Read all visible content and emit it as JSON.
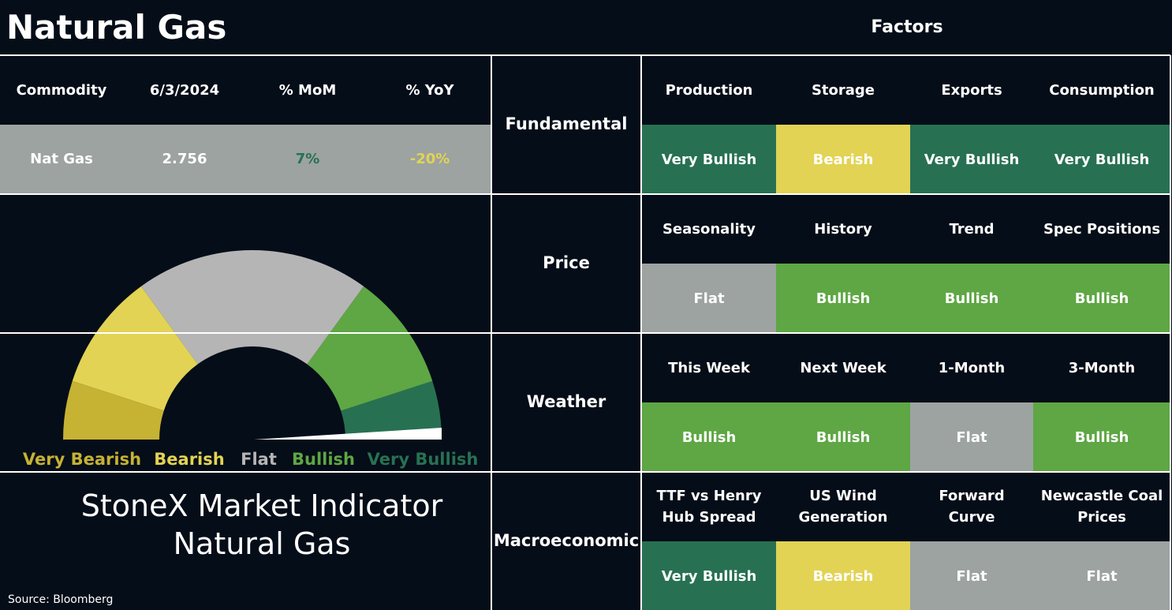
{
  "header": {
    "title": "Natural Gas",
    "factors_title": "Factors"
  },
  "table": {
    "columns": [
      "Commodity",
      "6/3/2024",
      "% MoM",
      "% YoY"
    ],
    "rows": [
      [
        "Nat Gas",
        "2.756",
        "7%",
        "-20%"
      ]
    ],
    "row_color": "#9ca3a1",
    "cell_colors": [
      [
        "#ffffff",
        "#ffffff",
        "#277152",
        "#e2d354"
      ]
    ]
  },
  "gauge": {
    "segments": [
      {
        "label": "Very Bearish",
        "color": "#c6b233",
        "label_color": "#c6b233"
      },
      {
        "label": "Bearish",
        "color": "#e2d354",
        "label_color": "#e2d354"
      },
      {
        "label": "Flat",
        "color": "#b5b5b5",
        "label_color": "#b5b5b5"
      },
      {
        "label": "Bullish",
        "color": "#5ea744",
        "label_color": "#5ea744"
      },
      {
        "label": "Very Bullish",
        "color": "#277152",
        "label_color": "#277152"
      }
    ],
    "title": [
      "StoneX Market Indicator",
      "Natural Gas"
    ]
  },
  "source": "Source: Bloomberg",
  "factors": [
    {
      "group": "Fundamental",
      "items": [
        {
          "name": "Production",
          "signal": "Very Bullish",
          "color": "#277152"
        },
        {
          "name": "Storage",
          "signal": "Bearish",
          "color": "#e2d354"
        },
        {
          "name": "Exports",
          "signal": "Very Bullish",
          "color": "#277152"
        },
        {
          "name": "Consumption",
          "signal": "Very Bullish",
          "color": "#277152"
        }
      ]
    },
    {
      "group": "Price",
      "items": [
        {
          "name": "Seasonality",
          "signal": "Flat",
          "color": "#9ca3a1"
        },
        {
          "name": "History",
          "signal": "Bullish",
          "color": "#5ea744"
        },
        {
          "name": "Trend",
          "signal": "Bullish",
          "color": "#5ea744"
        },
        {
          "name": "Spec Positions",
          "signal": "Bullish",
          "color": "#5ea744"
        }
      ]
    },
    {
      "group": "Weather",
      "items": [
        {
          "name": "This Week",
          "signal": "Bullish",
          "color": "#5ea744"
        },
        {
          "name": "Next Week",
          "signal": "Bullish",
          "color": "#5ea744"
        },
        {
          "name": "1-Month",
          "signal": "Flat",
          "color": "#9ca3a1"
        },
        {
          "name": "3-Month",
          "signal": "Bullish",
          "color": "#5ea744"
        }
      ]
    },
    {
      "group": "Macroeconomic",
      "items": [
        {
          "name": "TTF vs Henry\nHub Spread",
          "signal": "Very Bullish",
          "color": "#277152"
        },
        {
          "name": "US Wind\nGeneration",
          "signal": "Bearish",
          "color": "#e2d354"
        },
        {
          "name": "Forward\nCurve",
          "signal": "Flat",
          "color": "#9ca3a1"
        },
        {
          "name": "Newcastle Coal\nPrices",
          "signal": "Flat",
          "color": "#9ca3a1"
        }
      ]
    }
  ]
}
